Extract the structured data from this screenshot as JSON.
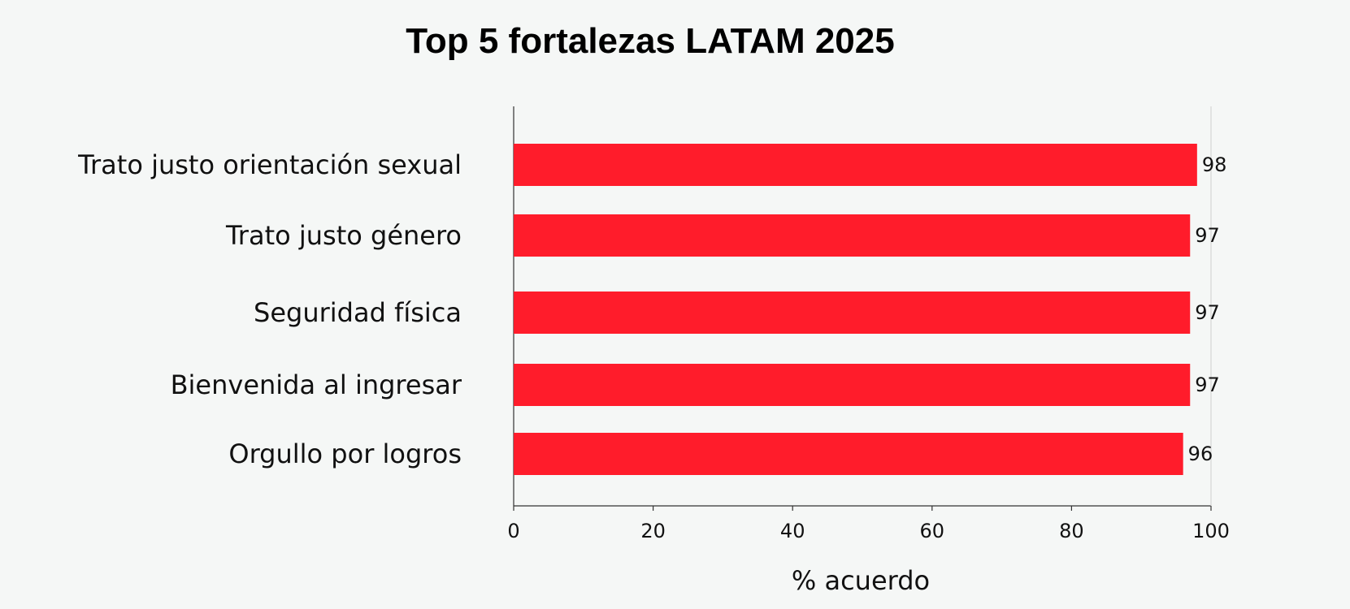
{
  "chart_data": {
    "type": "bar",
    "orientation": "horizontal",
    "title": "Top 5 fortalezas LATAM 2025",
    "xlabel": "% acuerdo",
    "ylabel": "",
    "categories": [
      "Trato justo orientación sexual",
      "Trato justo género",
      "Seguridad física",
      "Bienvenida al ingresar",
      "Orgullo por logros"
    ],
    "values": [
      98,
      97,
      97,
      97,
      96
    ],
    "value_labels": [
      "98",
      "97",
      "97",
      "97",
      "96"
    ],
    "xlim": [
      0,
      100
    ],
    "xticks": [
      0,
      20,
      40,
      60,
      80,
      100
    ],
    "xtick_labels": [
      "0",
      "20",
      "40",
      "60",
      "80",
      "100"
    ],
    "grid": false,
    "legend": "none",
    "bar_color": "#ff1c2b",
    "background_color": "#f5f7f6"
  }
}
